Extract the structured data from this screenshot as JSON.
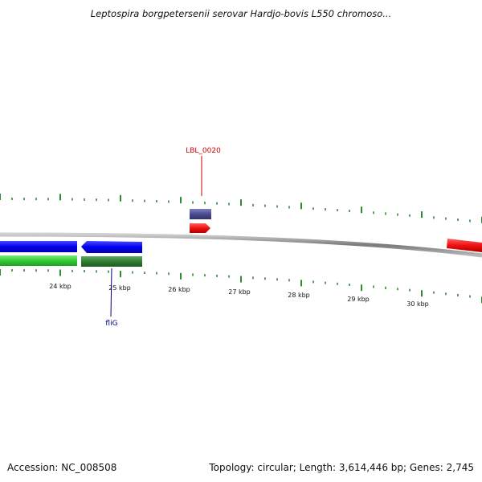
{
  "title": "Leptospira borgpetersenii serovar Hardjo-bovis L550 chromoso...",
  "footer": {
    "accession": "Accession: NC_008508",
    "summary": "Topology: circular; Length: 3,614,446 bp; Genes: 2,745"
  },
  "colors": {
    "backbone": "#808080",
    "ticks": "#2e8b2e",
    "forward_gene": "#0000ee",
    "reverse_gene": "#33cc33",
    "dark_green_gene": "#2e7d32",
    "purple_feature": "#4b4b8f",
    "red_feature": "#ee1111",
    "label_red": "#cc0000",
    "label_blue": "#000080"
  },
  "scale": {
    "tick_labels": [
      "24 kbp",
      "25 kbp",
      "26 kbp",
      "27 kbp",
      "28 kbp",
      "29 kbp",
      "30 kbp"
    ]
  },
  "labels": {
    "lbl_0020": "LBL_0020",
    "flig": "fliG"
  }
}
